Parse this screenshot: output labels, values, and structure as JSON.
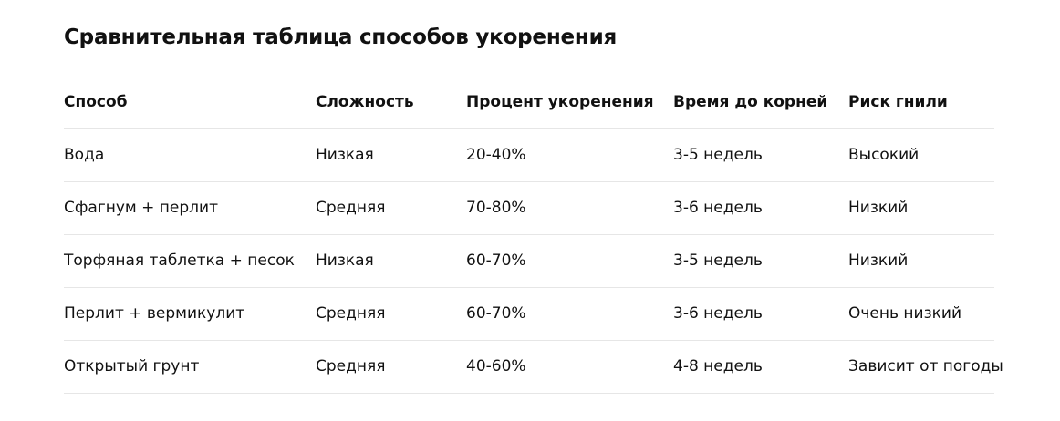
{
  "title": "Сравнительная таблица способов укоренения",
  "table": {
    "headers": [
      "Способ",
      "Сложность",
      "Процент укоренения",
      "Время до корней",
      "Риск гнили"
    ],
    "rows": [
      [
        "Вода",
        "Низкая",
        "20-40%",
        "3-5 недель",
        "Высокий"
      ],
      [
        "Сфагнум + перлит",
        "Средняя",
        "70-80%",
        "3-6 недель",
        "Низкий"
      ],
      [
        "Торфяная таблетка + песок",
        "Низкая",
        "60-70%",
        "3-5 недель",
        "Низкий"
      ],
      [
        "Перлит + вермикулит",
        "Средняя",
        "60-70%",
        "3-6 недель",
        "Очень низкий"
      ],
      [
        "Открытый грунт",
        "Средняя",
        "40-60%",
        "4-8 недель",
        "Зависит от погоды"
      ]
    ]
  }
}
